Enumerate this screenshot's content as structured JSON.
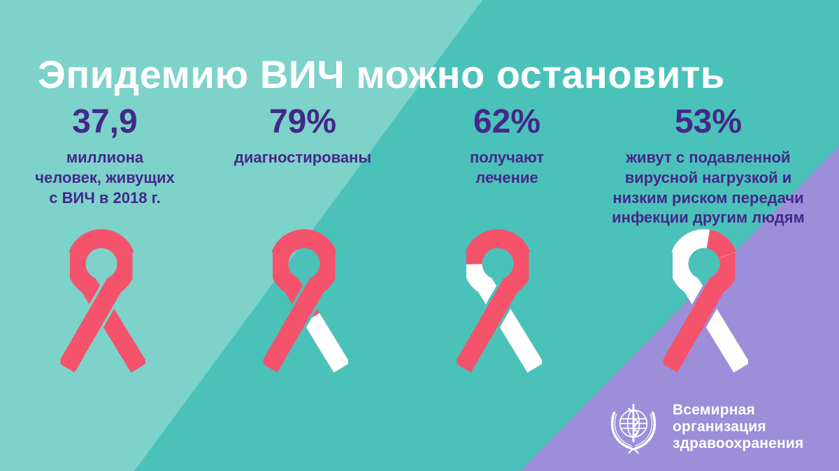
{
  "title": "Эпидемию ВИЧ можно остановить",
  "colors": {
    "teal_dark": "#4AC2BA",
    "teal_light": "#7DD2CA",
    "purple_bg": "#9D8ED9",
    "ribbon_red": "#F4536B",
    "ribbon_white": "#FFFFFF",
    "ink_purple": "#44278A",
    "title_white": "#FFFFFF"
  },
  "stats": [
    {
      "value": "37,9",
      "label": "миллиона\nчеловек, живущих\nс ВИЧ в 2018 г."
    },
    {
      "value": "79%",
      "label": "диагностированы"
    },
    {
      "value": "62%",
      "label": "получают\nлечение"
    },
    {
      "value": "53%",
      "label": "живут с подавленной\nвирусной нагрузкой и\nнизким риском передачи\nинфекции другим людям"
    }
  ],
  "ribbons": [
    {
      "name": "ribbon-100pct",
      "fill_pct": 100,
      "under_white_pct": 0,
      "arc_white_pct": 0
    },
    {
      "name": "ribbon-79pct",
      "fill_pct": 79,
      "under_white_pct": 43,
      "arc_white_pct": 0
    },
    {
      "name": "ribbon-62pct",
      "fill_pct": 62,
      "under_white_pct": 90,
      "arc_white_pct": 0
    },
    {
      "name": "ribbon-53pct",
      "fill_pct": 53,
      "under_white_pct": 100,
      "arc_white_pct": 57
    }
  ],
  "footer": {
    "org_name": "Всемирная организация\nздравоохранения"
  },
  "chart_data": {
    "type": "pictogram-cascade",
    "title": "Эпидемию ВИЧ можно остановить",
    "categories": [
      "миллиона человек, живущих с ВИЧ в 2018 г.",
      "диагностированы",
      "получают лечение",
      "живут с подавленной вирусной нагрузкой и низким риском передачи инфекции другим людям"
    ],
    "values": [
      37.9,
      79,
      62,
      53
    ],
    "units": [
      "млн человек",
      "%",
      "%",
      "%"
    ],
    "source": "Всемирная организация здравоохранения"
  }
}
